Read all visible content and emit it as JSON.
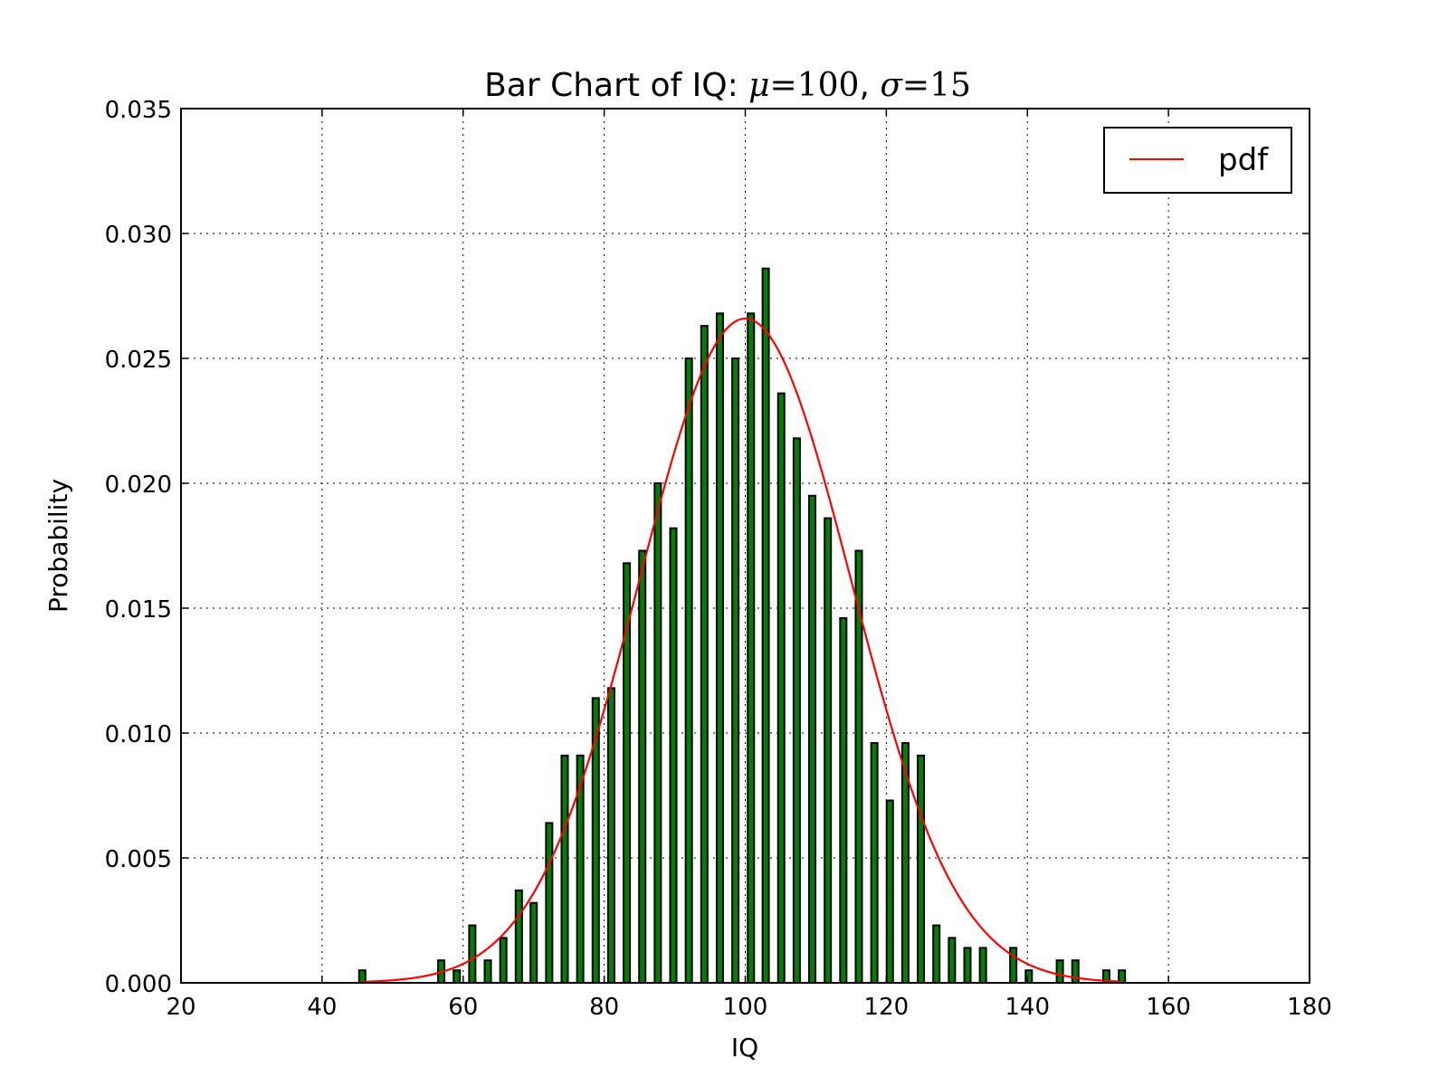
{
  "chart_data": {
    "type": "bar",
    "title": {
      "prefix": "Bar Chart of IQ: ",
      "mu_symbol": "μ",
      "eq1": "=",
      "mu_value": "100",
      "separator": ", ",
      "sigma_symbol": "σ",
      "eq2": "=",
      "sigma_value": "15"
    },
    "xlabel": "IQ",
    "ylabel": "Probability",
    "xlim": [
      20,
      180
    ],
    "ylim": [
      0,
      0.035
    ],
    "xticks": [
      20,
      40,
      60,
      80,
      100,
      120,
      140,
      160,
      180
    ],
    "xtick_labels": [
      "20",
      "40",
      "60",
      "80",
      "100",
      "120",
      "140",
      "160",
      "180"
    ],
    "yticks": [
      0,
      0.005,
      0.01,
      0.015,
      0.02,
      0.025,
      0.03,
      0.035
    ],
    "ytick_labels": [
      "0.000",
      "0.005",
      "0.010",
      "0.015",
      "0.020",
      "0.025",
      "0.030",
      "0.035"
    ],
    "grid": true,
    "legend": {
      "placement": "top-right",
      "entries": [
        "pdf"
      ]
    },
    "bar_color": "#007f00",
    "bar_edge_color": "#000000",
    "bar_width": 0.9,
    "line_color": "#ff0000",
    "bars": {
      "x": [
        45.7,
        56.9,
        59.1,
        61.3,
        63.5,
        65.7,
        67.9,
        70.0,
        72.2,
        74.4,
        76.6,
        78.8,
        81.0,
        83.2,
        85.4,
        87.6,
        89.8,
        92.0,
        94.2,
        96.4,
        98.6,
        100.8,
        102.9,
        105.1,
        107.3,
        109.5,
        111.7,
        113.9,
        116.1,
        118.3,
        120.5,
        122.7,
        124.9,
        127.1,
        129.3,
        131.5,
        133.7,
        138.0,
        140.2,
        144.6,
        146.8,
        151.2,
        153.4
      ],
      "values": [
        0.0005,
        0.0009,
        0.0005,
        0.0023,
        0.0009,
        0.0018,
        0.0037,
        0.0032,
        0.0064,
        0.0091,
        0.0091,
        0.0114,
        0.0118,
        0.0168,
        0.0173,
        0.02,
        0.0182,
        0.025,
        0.0263,
        0.0268,
        0.025,
        0.0268,
        0.0286,
        0.0236,
        0.0218,
        0.0195,
        0.0186,
        0.0146,
        0.0173,
        0.0096,
        0.0073,
        0.0096,
        0.0091,
        0.0023,
        0.0018,
        0.0014,
        0.0014,
        0.0014,
        0.0005,
        0.0009,
        0.0009,
        0.0005,
        0.0005
      ]
    },
    "series": [
      {
        "name": "pdf",
        "type": "line",
        "mu": 100,
        "sigma": 15,
        "x_range": [
          45.7,
          153.4
        ]
      }
    ]
  }
}
